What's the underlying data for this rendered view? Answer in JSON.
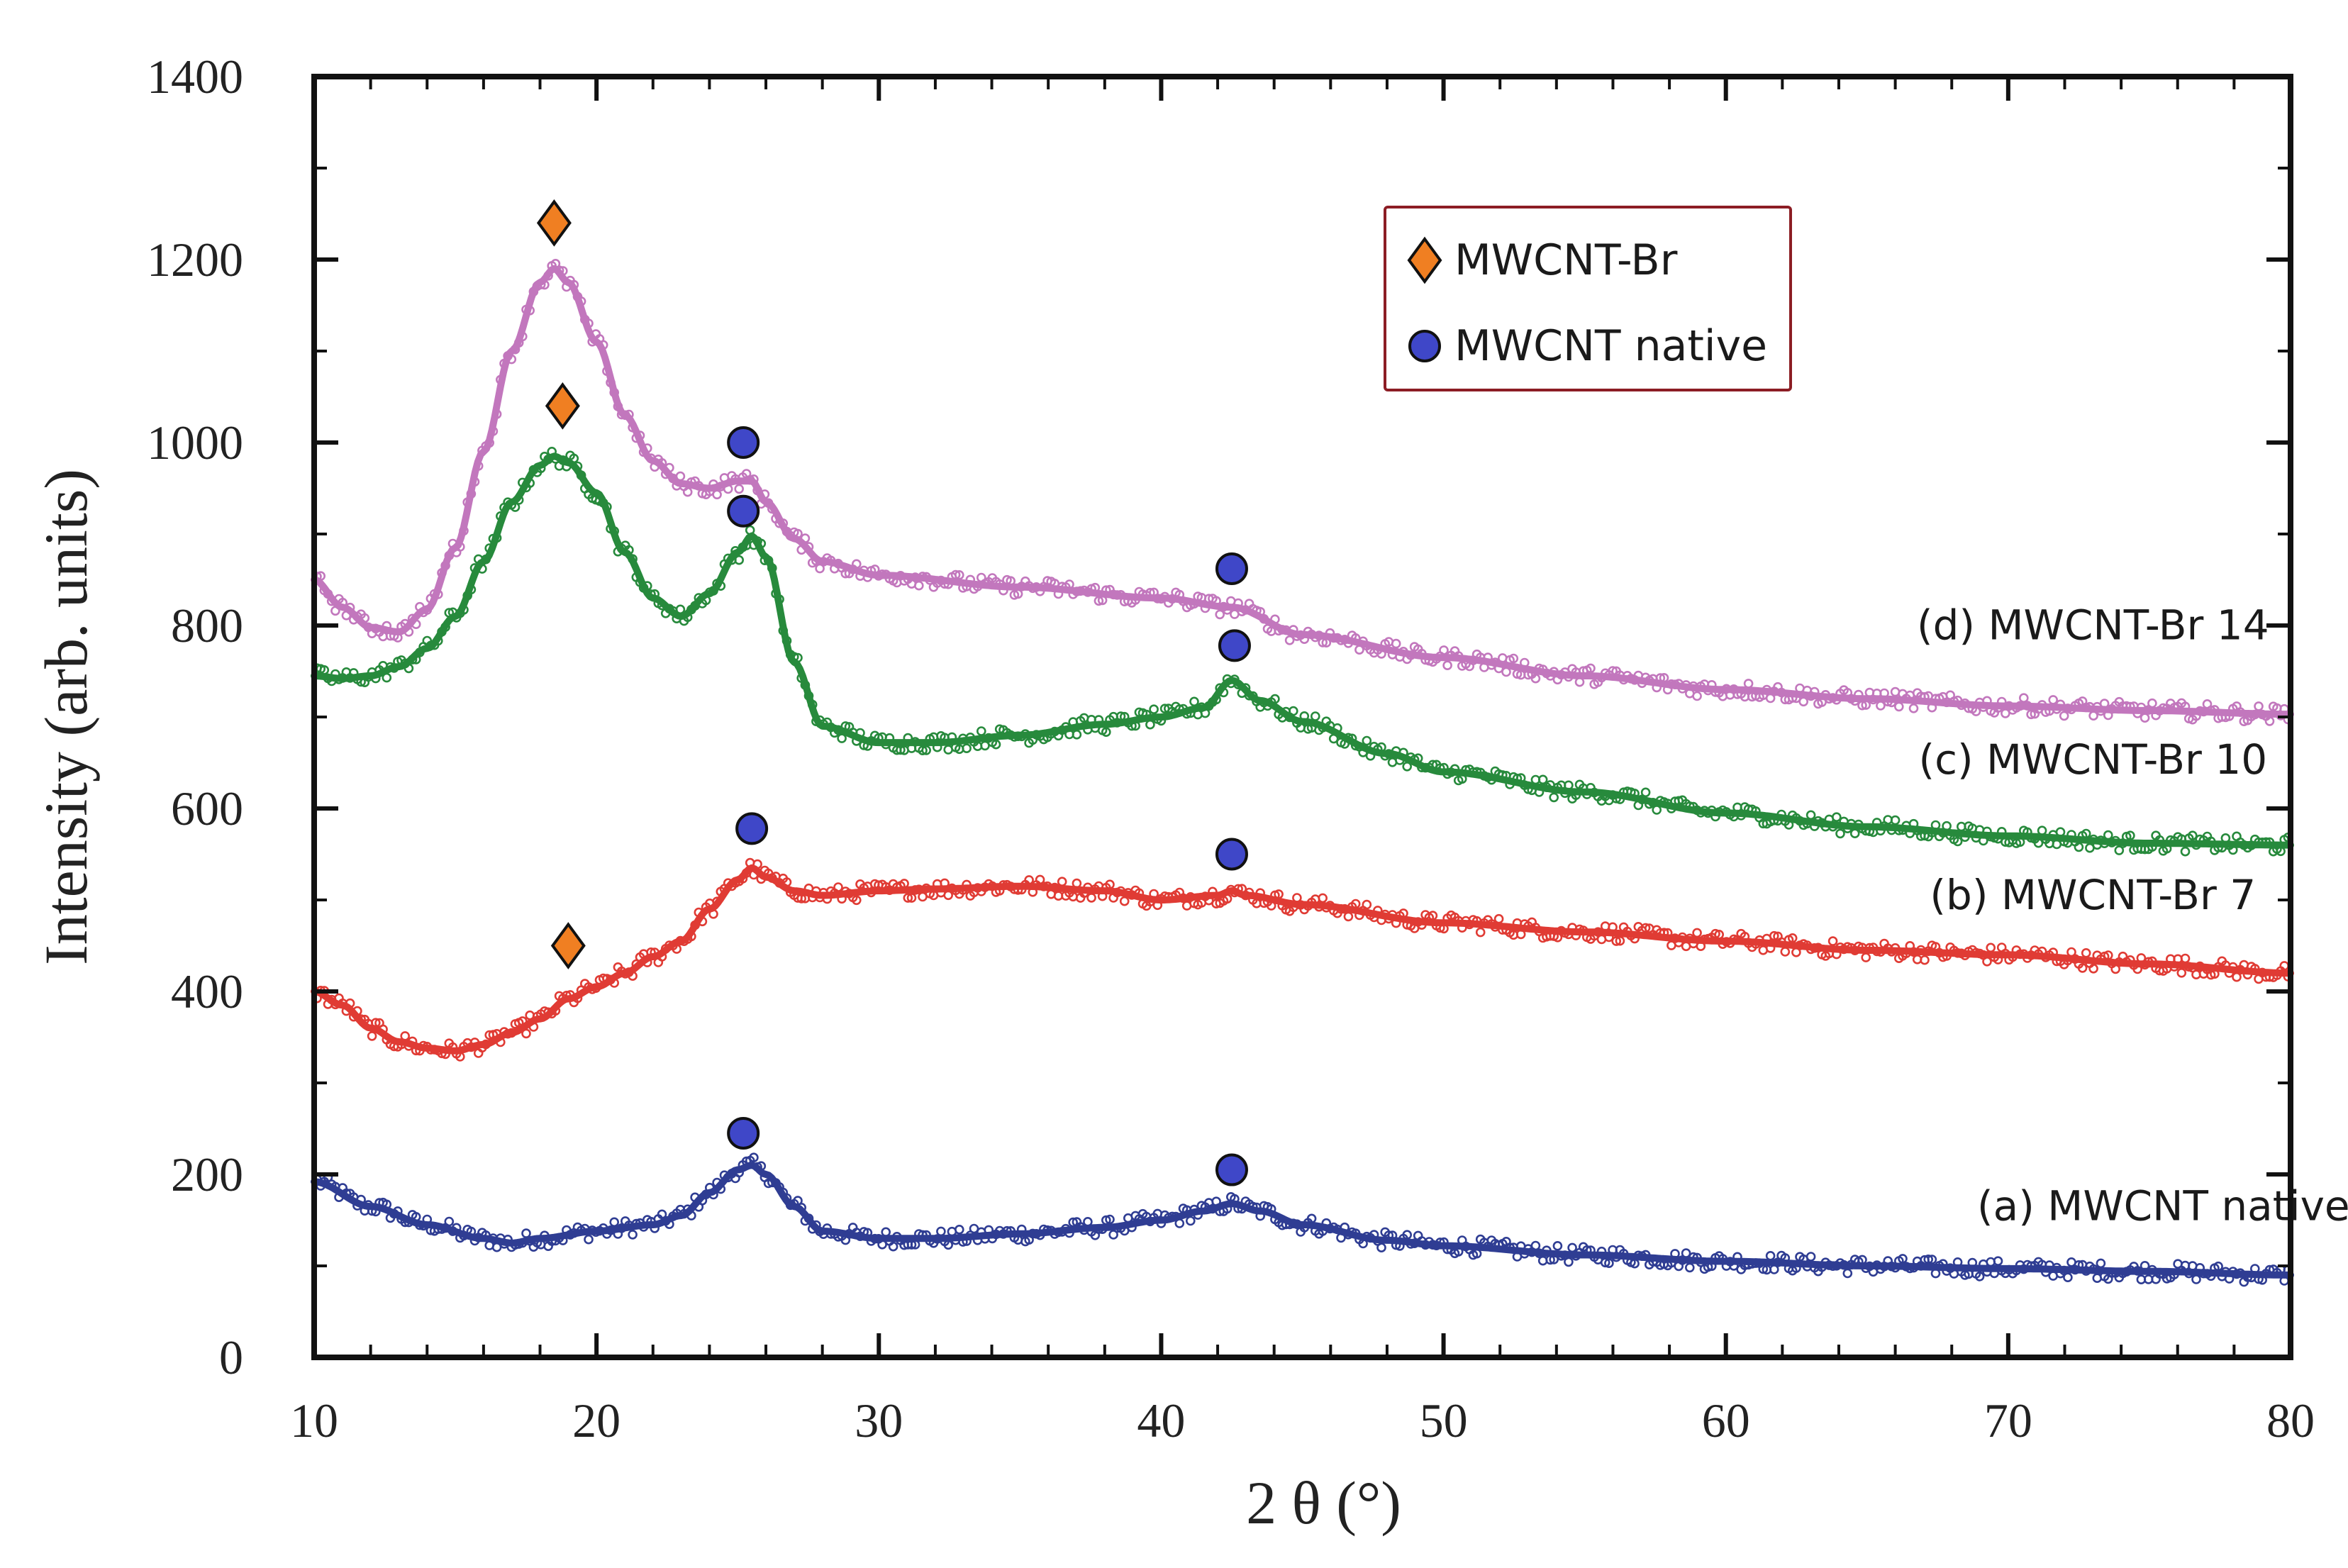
{
  "chart_data": {
    "type": "scatter",
    "title": "",
    "xlabel": "2 θ  (°)",
    "ylabel": "Intensity (arb. units)",
    "xlim": [
      10,
      80
    ],
    "ylim": [
      0,
      1400
    ],
    "x_ticks": [
      10,
      20,
      30,
      40,
      50,
      60,
      70,
      80
    ],
    "y_ticks": [
      0,
      200,
      400,
      600,
      800,
      1000,
      1200,
      1400
    ],
    "x_tick_labels": [
      "10",
      "20",
      "30",
      "40",
      "50",
      "60",
      "70",
      "80"
    ],
    "y_tick_labels": [
      "0",
      "200",
      "400",
      "600",
      "800",
      "1000",
      "1200",
      "1400"
    ],
    "grid": false,
    "legend": {
      "position": "top-right",
      "entries": [
        {
          "label": "MWCNT-Br",
          "marker": "diamond-icon",
          "color": "#f07f22"
        },
        {
          "label": "MWCNT native",
          "marker": "circle-icon",
          "color": "#3f47c8"
        }
      ]
    },
    "series": [
      {
        "name": "(a) MWCNT native",
        "color": "#2f3d93",
        "points": [
          [
            10,
            192
          ],
          [
            12,
            165
          ],
          [
            14,
            145
          ],
          [
            16,
            130
          ],
          [
            17,
            125
          ],
          [
            18,
            130
          ],
          [
            20,
            138
          ],
          [
            22,
            145
          ],
          [
            23,
            155
          ],
          [
            24,
            180
          ],
          [
            25,
            205
          ],
          [
            25.5,
            210
          ],
          [
            26,
            200
          ],
          [
            27,
            165
          ],
          [
            28,
            138
          ],
          [
            30,
            130
          ],
          [
            32,
            130
          ],
          [
            35,
            135
          ],
          [
            38,
            142
          ],
          [
            40,
            150
          ],
          [
            41.5,
            160
          ],
          [
            42.5,
            168
          ],
          [
            43.5,
            160
          ],
          [
            45,
            145
          ],
          [
            48,
            128
          ],
          [
            50,
            122
          ],
          [
            55,
            112
          ],
          [
            60,
            105
          ],
          [
            65,
            100
          ],
          [
            70,
            97
          ],
          [
            75,
            94
          ],
          [
            80,
            90
          ]
        ]
      },
      {
        "name": "(b) MWCNT-Br 7",
        "color": "#e03b34",
        "points": [
          [
            10,
            400
          ],
          [
            11,
            385
          ],
          [
            12,
            360
          ],
          [
            13,
            345
          ],
          [
            14,
            338
          ],
          [
            15,
            335
          ],
          [
            16,
            342
          ],
          [
            17,
            355
          ],
          [
            18,
            370
          ],
          [
            19,
            392
          ],
          [
            20,
            405
          ],
          [
            21,
            420
          ],
          [
            22,
            438
          ],
          [
            23,
            455
          ],
          [
            24,
            490
          ],
          [
            25,
            522
          ],
          [
            25.5,
            535
          ],
          [
            26,
            525
          ],
          [
            27,
            510
          ],
          [
            28,
            505
          ],
          [
            30,
            510
          ],
          [
            32,
            512
          ],
          [
            35,
            515
          ],
          [
            38,
            510
          ],
          [
            40,
            500
          ],
          [
            42,
            505
          ],
          [
            42.5,
            510
          ],
          [
            43,
            505
          ],
          [
            45,
            495
          ],
          [
            50,
            475
          ],
          [
            55,
            465
          ],
          [
            60,
            455
          ],
          [
            65,
            445
          ],
          [
            70,
            440
          ],
          [
            75,
            430
          ],
          [
            80,
            420
          ]
        ]
      },
      {
        "name": "(c) MWCNT-Br 10",
        "color": "#278a3c",
        "points": [
          [
            10,
            745
          ],
          [
            11,
            742
          ],
          [
            12,
            745
          ],
          [
            13,
            755
          ],
          [
            14,
            775
          ],
          [
            15,
            810
          ],
          [
            16,
            870
          ],
          [
            17,
            935
          ],
          [
            18,
            975
          ],
          [
            18.5,
            985
          ],
          [
            19,
            978
          ],
          [
            20,
            945
          ],
          [
            21,
            880
          ],
          [
            22,
            830
          ],
          [
            23,
            810
          ],
          [
            24,
            835
          ],
          [
            25,
            880
          ],
          [
            25.5,
            898
          ],
          [
            26,
            875
          ],
          [
            27,
            760
          ],
          [
            28,
            690
          ],
          [
            30,
            672
          ],
          [
            32,
            672
          ],
          [
            35,
            680
          ],
          [
            38,
            692
          ],
          [
            40,
            700
          ],
          [
            41.5,
            710
          ],
          [
            42.5,
            740
          ],
          [
            43.5,
            718
          ],
          [
            45,
            695
          ],
          [
            48,
            660
          ],
          [
            50,
            640
          ],
          [
            55,
            618
          ],
          [
            60,
            595
          ],
          [
            65,
            580
          ],
          [
            70,
            570
          ],
          [
            75,
            562
          ],
          [
            80,
            560
          ]
        ]
      },
      {
        "name": "(d) MWCNT-Br 14",
        "color": "#c277bd",
        "points": [
          [
            10,
            850
          ],
          [
            11,
            820
          ],
          [
            12,
            798
          ],
          [
            13,
            793
          ],
          [
            14,
            818
          ],
          [
            15,
            885
          ],
          [
            16,
            990
          ],
          [
            17,
            1100
          ],
          [
            18,
            1175
          ],
          [
            18.5,
            1190
          ],
          [
            19,
            1175
          ],
          [
            20,
            1110
          ],
          [
            21,
            1030
          ],
          [
            22,
            980
          ],
          [
            23,
            955
          ],
          [
            24,
            950
          ],
          [
            25,
            958
          ],
          [
            25.5,
            958
          ],
          [
            26,
            935
          ],
          [
            27,
            895
          ],
          [
            28,
            870
          ],
          [
            30,
            855
          ],
          [
            35,
            842
          ],
          [
            40,
            830
          ],
          [
            42.5,
            820
          ],
          [
            45,
            790
          ],
          [
            50,
            765
          ],
          [
            55,
            745
          ],
          [
            60,
            730
          ],
          [
            65,
            720
          ],
          [
            70,
            712
          ],
          [
            75,
            707
          ],
          [
            80,
            703
          ]
        ]
      }
    ],
    "annotations": [
      {
        "type": "MWCNT-Br",
        "x": 18.5,
        "y": 1240
      },
      {
        "type": "MWCNT-Br",
        "x": 18.8,
        "y": 1040
      },
      {
        "type": "MWCNT-Br",
        "x": 19.0,
        "y": 450
      },
      {
        "type": "MWCNT native",
        "x": 25.2,
        "y": 1000
      },
      {
        "type": "MWCNT native",
        "x": 25.2,
        "y": 925
      },
      {
        "type": "MWCNT native",
        "x": 25.5,
        "y": 578
      },
      {
        "type": "MWCNT native",
        "x": 25.2,
        "y": 245
      },
      {
        "type": "MWCNT native",
        "x": 42.5,
        "y": 862
      },
      {
        "type": "MWCNT native",
        "x": 42.6,
        "y": 778
      },
      {
        "type": "MWCNT native",
        "x": 42.5,
        "y": 550
      },
      {
        "type": "MWCNT native",
        "x": 42.5,
        "y": 205
      }
    ],
    "series_labels": [
      {
        "text": "(d) MWCNT-Br 14",
        "x": 73.0,
        "y": 785
      },
      {
        "text": "(c) MWCNT-Br 10",
        "x": 73.0,
        "y": 638
      },
      {
        "text": "(b) MWCNT-Br 7",
        "x": 73.0,
        "y": 490
      },
      {
        "text": "(a) MWCNT native",
        "x": 75.5,
        "y": 150
      }
    ]
  }
}
